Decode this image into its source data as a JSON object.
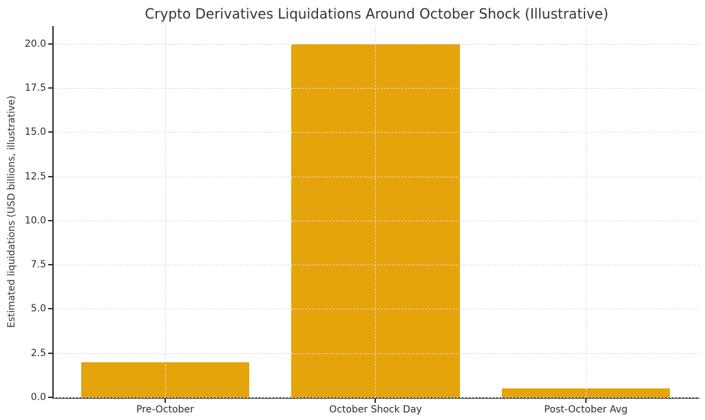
{
  "chart_data": {
    "type": "bar",
    "title": "Crypto Derivatives Liquidations Around October Shock (Illustrative)",
    "ylabel": "Estimated liquidations (USD billions, illustrative)",
    "xlabel": "",
    "categories": [
      "Pre-October",
      "October Shock Day",
      "Post-October Avg"
    ],
    "values": [
      2.0,
      20.0,
      0.5
    ],
    "ytick_values": [
      0,
      2.5,
      5,
      7.5,
      10,
      12.5,
      15,
      17.5,
      20
    ],
    "ytick_labels": [
      "0.0",
      "2.5",
      "5.0",
      "7.5",
      "10.0",
      "12.5",
      "15.0",
      "17.5",
      "20.0"
    ],
    "ylim": [
      0,
      21
    ],
    "xlim": [
      -0.53,
      2.54
    ],
    "bar_width": 0.8,
    "grid": true,
    "grid_style": "dashed",
    "grid_axis": "both",
    "legend": null,
    "colors": {
      "bar": "#E5A40B",
      "grid": "#DCDCDC",
      "spine": "#2F2F2F",
      "text": "#343434",
      "tick_text": "#2B2B2B",
      "background": "#FFFFFF"
    }
  }
}
